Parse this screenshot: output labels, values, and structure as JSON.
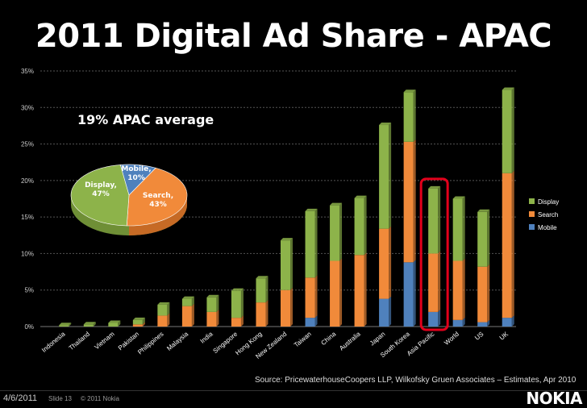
{
  "title": "2011 Digital Ad Share - APAC",
  "annotation": "19% APAC average",
  "source": "Source: PricewaterhouseCoopers LLP, Wilkofsky Gruen Associates – Estimates, Apr 2010",
  "footer": {
    "date": "4/6/2011",
    "slide": "Slide 13",
    "copyright": "© 2011 Nokia",
    "logo": "NOKIA"
  },
  "colors": {
    "display": "#8db34a",
    "search": "#f18a3a",
    "mobile": "#4f81bd",
    "highlight": "#e3001b"
  },
  "chart_data": [
    {
      "type": "bar",
      "stacked": true,
      "categories": [
        "Indonesia",
        "Thailand",
        "Vietnam",
        "Pakistan",
        "Philippines",
        "Malaysia",
        "India",
        "Singapore",
        "Hong Kong",
        "New Zealand",
        "Taiwan",
        "China",
        "Australia",
        "Japan",
        "South Korea",
        "Asia Pacific",
        "World",
        "US",
        "UK"
      ],
      "series": [
        {
          "name": "Mobile",
          "values": [
            0,
            0,
            0,
            0,
            0,
            0,
            0,
            0,
            0,
            0,
            1.2,
            0,
            0,
            3.8,
            8.8,
            2.0,
            0.9,
            0.6,
            1.2
          ]
        },
        {
          "name": "Search",
          "values": [
            0,
            0,
            0,
            0.3,
            1.5,
            2.8,
            2.0,
            1.2,
            3.3,
            5.0,
            5.5,
            9.0,
            9.8,
            9.6,
            16.5,
            8.0,
            8.1,
            7.6,
            19.8
          ]
        },
        {
          "name": "Display",
          "values": [
            0.2,
            0.3,
            0.5,
            0.6,
            1.5,
            1.0,
            2.0,
            3.7,
            3.3,
            6.8,
            9.1,
            7.6,
            7.8,
            14.2,
            6.8,
            8.9,
            8.5,
            7.5,
            11.4
          ]
        }
      ],
      "y_ticks": [
        "0%",
        "5%",
        "10%",
        "15%",
        "20%",
        "25%",
        "30%",
        "35%"
      ],
      "ylim": [
        0,
        35
      ],
      "legend": [
        "Display",
        "Search",
        "Mobile"
      ],
      "legend_position": "right",
      "highlight_category": "Asia Pacific",
      "grid": true
    },
    {
      "type": "pie",
      "labels": [
        "Mobile,\n10%",
        "Search,\n43%",
        "Display,\n47%"
      ],
      "values": [
        10,
        43,
        47
      ]
    }
  ]
}
